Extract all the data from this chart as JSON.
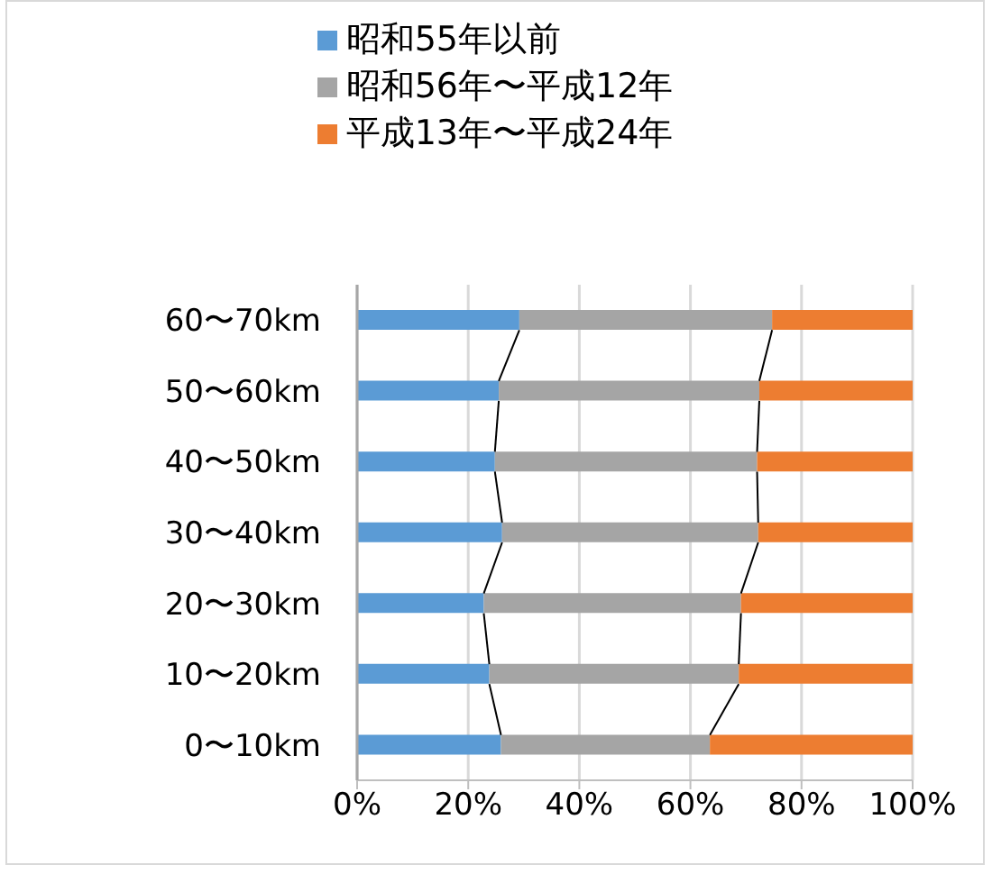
{
  "chart_data": {
    "type": "bar",
    "orientation": "horizontal",
    "stacked": true,
    "categories": [
      "60〜70km",
      "50〜60km",
      "40〜50km",
      "30〜40km",
      "20〜30km",
      "10〜20km",
      "0〜10km"
    ],
    "series": [
      {
        "name": "昭和55年以前",
        "color": "#5b9bd5",
        "values": [
          29.2,
          25.5,
          24.8,
          26.1,
          22.8,
          23.8,
          25.9
        ]
      },
      {
        "name": "昭和56年〜平成12年",
        "color": "#a5a5a5",
        "values": [
          45.5,
          46.9,
          47.2,
          46.1,
          46.3,
          44.9,
          37.6
        ]
      },
      {
        "name": "平成13年〜平成24年",
        "color": "#ed7d31",
        "values": [
          25.3,
          27.6,
          28.0,
          27.8,
          30.9,
          31.3,
          36.5
        ]
      }
    ],
    "xlim": [
      0,
      100
    ],
    "xticks": [
      {
        "value": 0,
        "label": "0%"
      },
      {
        "value": 20,
        "label": "20%"
      },
      {
        "value": 40,
        "label": "40%"
      },
      {
        "value": 60,
        "label": "60%"
      },
      {
        "value": 80,
        "label": "80%"
      },
      {
        "value": 100,
        "label": "100%"
      }
    ],
    "grid": "x",
    "legend": "top"
  }
}
